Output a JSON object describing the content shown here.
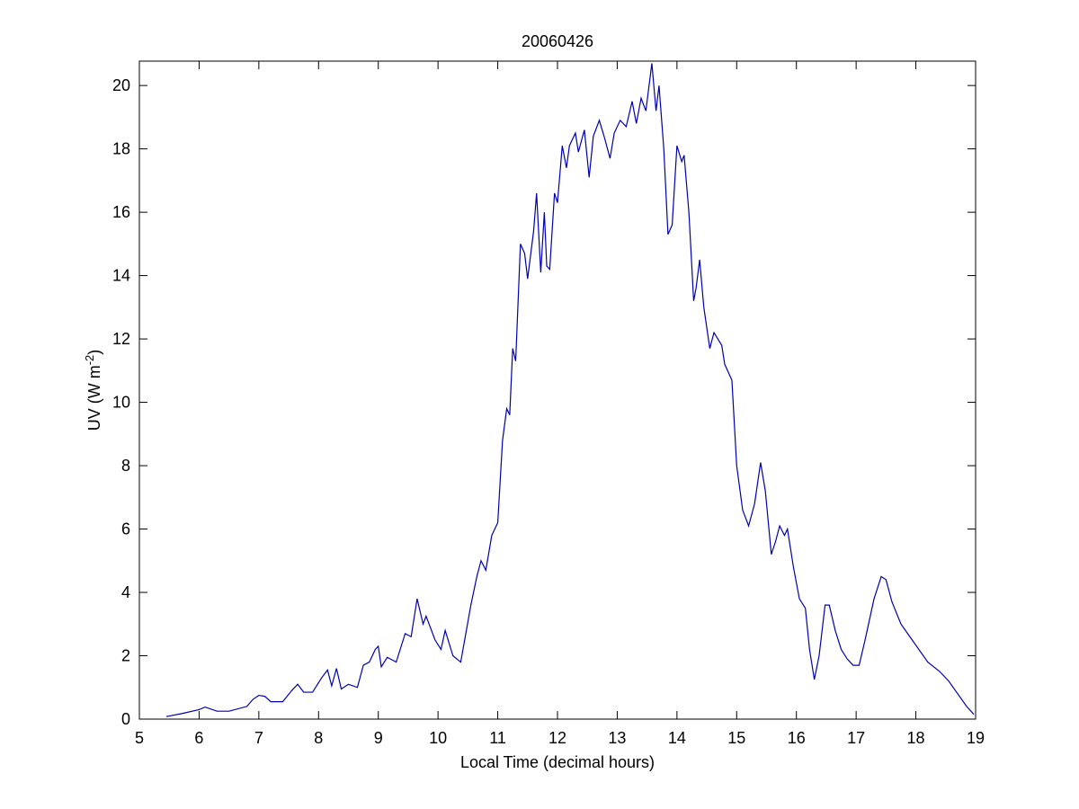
{
  "chart_data": {
    "type": "line",
    "title": "20060426",
    "x_label": "Local Time (decimal hours)",
    "y_label": {
      "main": "UV (W m",
      "superscript": "-2",
      "end": ")"
    },
    "xlim": [
      5,
      19
    ],
    "ylim": [
      0,
      20.77
    ],
    "xticks": [
      5,
      6,
      7,
      8,
      9,
      10,
      11,
      12,
      13,
      14,
      15,
      16,
      17,
      18,
      19
    ],
    "yticks": [
      0,
      2,
      4,
      6,
      8,
      10,
      12,
      14,
      16,
      18,
      20
    ],
    "grid": false,
    "color": "#0000b0",
    "x": [
      5.45,
      5.7,
      6.0,
      6.1,
      6.3,
      6.5,
      6.8,
      6.9,
      7.0,
      7.1,
      7.2,
      7.4,
      7.55,
      7.65,
      7.75,
      7.9,
      8.05,
      8.15,
      8.22,
      8.3,
      8.38,
      8.5,
      8.65,
      8.75,
      8.85,
      8.95,
      9.0,
      9.05,
      9.15,
      9.3,
      9.45,
      9.55,
      9.65,
      9.75,
      9.8,
      9.95,
      10.05,
      10.12,
      10.25,
      10.38,
      10.55,
      10.65,
      10.72,
      10.8,
      10.9,
      11.0,
      11.08,
      11.15,
      11.2,
      11.25,
      11.3,
      11.38,
      11.45,
      11.5,
      11.6,
      11.65,
      11.72,
      11.78,
      11.82,
      11.87,
      11.95,
      12.0,
      12.08,
      12.15,
      12.2,
      12.3,
      12.35,
      12.45,
      12.53,
      12.6,
      12.7,
      12.78,
      12.88,
      12.95,
      13.05,
      13.15,
      13.25,
      13.32,
      13.4,
      13.48,
      13.58,
      13.65,
      13.7,
      13.78,
      13.85,
      13.92,
      14.0,
      14.08,
      14.12,
      14.2,
      14.28,
      14.32,
      14.38,
      14.45,
      14.55,
      14.62,
      14.75,
      14.8,
      14.92,
      15.0,
      15.1,
      15.2,
      15.3,
      15.4,
      15.48,
      15.58,
      15.65,
      15.72,
      15.8,
      15.85,
      15.95,
      16.05,
      16.15,
      16.22,
      16.3,
      16.38,
      16.48,
      16.55,
      16.65,
      16.75,
      16.85,
      16.95,
      17.05,
      17.15,
      17.3,
      17.42,
      17.5,
      17.6,
      17.75,
      17.9,
      18.05,
      18.2,
      18.4,
      18.55,
      18.7,
      18.85,
      18.97
    ],
    "values": [
      0.08,
      0.17,
      0.3,
      0.38,
      0.25,
      0.25,
      0.4,
      0.62,
      0.75,
      0.72,
      0.55,
      0.55,
      0.9,
      1.1,
      0.85,
      0.85,
      1.3,
      1.55,
      1.05,
      1.6,
      0.95,
      1.1,
      1.0,
      1.7,
      1.8,
      2.2,
      2.3,
      1.65,
      1.95,
      1.8,
      2.7,
      2.6,
      3.8,
      3.0,
      3.25,
      2.5,
      2.2,
      2.8,
      2.0,
      1.8,
      3.6,
      4.5,
      5.0,
      4.7,
      5.8,
      6.2,
      8.8,
      9.8,
      9.6,
      11.7,
      11.3,
      15.0,
      14.7,
      13.9,
      15.4,
      16.6,
      14.1,
      16.0,
      14.3,
      14.2,
      16.6,
      16.3,
      18.1,
      17.4,
      18.1,
      18.5,
      17.9,
      18.6,
      17.1,
      18.4,
      18.9,
      18.4,
      17.7,
      18.5,
      18.9,
      18.7,
      19.5,
      18.8,
      19.6,
      19.2,
      20.7,
      19.2,
      20.0,
      18.0,
      15.3,
      15.6,
      18.1,
      17.6,
      17.8,
      16.0,
      13.2,
      13.6,
      14.5,
      13.0,
      11.7,
      12.2,
      11.8,
      11.2,
      10.7,
      8.0,
      6.6,
      6.1,
      6.8,
      8.1,
      7.2,
      5.2,
      5.6,
      6.1,
      5.8,
      6.0,
      4.8,
      3.8,
      3.5,
      2.2,
      1.25,
      2.0,
      3.6,
      3.6,
      2.8,
      2.2,
      1.9,
      1.7,
      1.7,
      2.5,
      3.8,
      4.5,
      4.4,
      3.7,
      3.0,
      2.6,
      2.2,
      1.8,
      1.5,
      1.2,
      0.8,
      0.4,
      0.15
    ]
  }
}
